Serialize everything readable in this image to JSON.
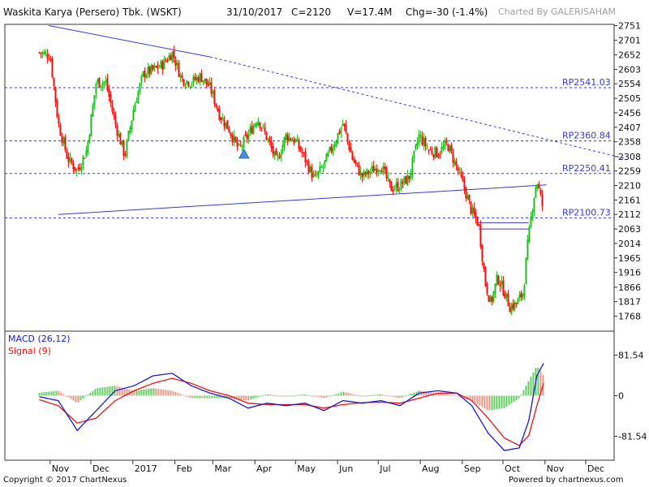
{
  "header": {
    "title": "Waskita Karya (Persero) Tbk. (WSKT)",
    "date": "31/10/2017",
    "close": "C=2120",
    "volume": "V=17.4M",
    "change": "Chg=-30 (-1.4%)",
    "watermark": "Charted By GALERISAHAM"
  },
  "footer": {
    "copyright": "Copyright © 2017 ChartNexus",
    "powered": "Powered by chartnexus.com"
  },
  "colors": {
    "up": "#22bb22",
    "down": "#ee1111",
    "trend": "#3a3ad0",
    "macd": "#1a1acc",
    "signal": "#ee1111"
  },
  "chart_data": [
    {
      "type": "candlestick",
      "title": "Waskita Karya (Persero) Tbk. (WSKT)",
      "ylim": [
        1730,
        2770
      ],
      "y_ticks": [
        "2751",
        "2701",
        "2652",
        "2603",
        "2554",
        "2505",
        "2456",
        "2407",
        "2358",
        "2308",
        "2259",
        "2210",
        "2161",
        "2112",
        "2063",
        "2014",
        "1965",
        "1916",
        "1866",
        "1817",
        "1768"
      ],
      "x_ticks": [
        "Nov",
        "Dec",
        "2017",
        "Feb",
        "Mar",
        "Apr",
        "May",
        "Jun",
        "Jul",
        "Aug",
        "Sep",
        "Oct",
        "Nov",
        "Dec"
      ],
      "levels": [
        {
          "label": "RP2541.03",
          "value": 2541.03
        },
        {
          "label": "RP2360.84",
          "value": 2360.84
        },
        {
          "label": "RP2250.41",
          "value": 2250.41
        },
        {
          "label": "RP2100.73",
          "value": 2100.73
        }
      ],
      "close_path": [
        [
          "2016-10-24",
          2660
        ],
        [
          "2016-11-01",
          2650
        ],
        [
          "2016-11-07",
          2420
        ],
        [
          "2016-11-14",
          2300
        ],
        [
          "2016-11-21",
          2260
        ],
        [
          "2016-11-28",
          2330
        ],
        [
          "2016-12-05",
          2560
        ],
        [
          "2016-12-12",
          2560
        ],
        [
          "2016-12-19",
          2420
        ],
        [
          "2016-12-26",
          2310
        ],
        [
          "2017-01-02",
          2480
        ],
        [
          "2017-01-09",
          2590
        ],
        [
          "2017-01-16",
          2600
        ],
        [
          "2017-01-23",
          2620
        ],
        [
          "2017-01-30",
          2660
        ],
        [
          "2017-02-06",
          2570
        ],
        [
          "2017-02-13",
          2560
        ],
        [
          "2017-02-20",
          2580
        ],
        [
          "2017-02-27",
          2540
        ],
        [
          "2017-03-06",
          2450
        ],
        [
          "2017-03-13",
          2400
        ],
        [
          "2017-03-20",
          2330
        ],
        [
          "2017-03-27",
          2380
        ],
        [
          "2017-04-03",
          2440
        ],
        [
          "2017-04-10",
          2370
        ],
        [
          "2017-04-17",
          2290
        ],
        [
          "2017-04-24",
          2380
        ],
        [
          "2017-05-01",
          2360
        ],
        [
          "2017-05-08",
          2300
        ],
        [
          "2017-05-15",
          2230
        ],
        [
          "2017-05-22",
          2280
        ],
        [
          "2017-05-29",
          2350
        ],
        [
          "2017-06-05",
          2420
        ],
        [
          "2017-06-12",
          2300
        ],
        [
          "2017-06-19",
          2240
        ],
        [
          "2017-06-26",
          2260
        ],
        [
          "2017-07-03",
          2280
        ],
        [
          "2017-07-10",
          2200
        ],
        [
          "2017-07-17",
          2210
        ],
        [
          "2017-07-24",
          2240
        ],
        [
          "2017-07-31",
          2380
        ],
        [
          "2017-08-07",
          2330
        ],
        [
          "2017-08-14",
          2320
        ],
        [
          "2017-08-21",
          2350
        ],
        [
          "2017-08-28",
          2270
        ],
        [
          "2017-09-04",
          2180
        ],
        [
          "2017-09-08",
          2120
        ],
        [
          "2017-09-13",
          2080
        ],
        [
          "2017-09-18",
          1880
        ],
        [
          "2017-09-22",
          1810
        ],
        [
          "2017-09-27",
          1900
        ],
        [
          "2017-10-02",
          1850
        ],
        [
          "2017-10-06",
          1800
        ],
        [
          "2017-10-11",
          1810
        ],
        [
          "2017-10-16",
          1850
        ],
        [
          "2017-10-19",
          2000
        ],
        [
          "2017-10-23",
          2150
        ],
        [
          "2017-10-26",
          2230
        ],
        [
          "2017-10-31",
          2120
        ]
      ],
      "trendlines": [
        {
          "from": [
            "2016-10-31",
            2751
          ],
          "to": [
            "2017-02-27",
            2645
          ],
          "style": "solid"
        },
        {
          "from": [
            "2017-02-27",
            2645
          ],
          "to": [
            "2017-12-31",
            2300
          ],
          "style": "dashed"
        },
        {
          "from": [
            "2016-11-07",
            2112
          ],
          "to": [
            "2017-11-02",
            2212
          ],
          "style": "solid"
        },
        {
          "from": [
            "2017-09-12",
            2084
          ],
          "to": [
            "2017-10-20",
            2084
          ],
          "style": "solid"
        },
        {
          "from": [
            "2017-09-13",
            2063
          ],
          "to": [
            "2017-10-20",
            2063
          ],
          "style": "solid"
        }
      ],
      "marker": {
        "date": "2017-03-24",
        "value": 2316,
        "shape": "triangle-up"
      }
    },
    {
      "type": "macd",
      "legend": [
        "MACD (26,12)",
        "Signal (9)"
      ],
      "ylim": [
        -120,
        120
      ],
      "y_ticks": [
        81.54,
        0,
        -81.54
      ],
      "y_tick_labels": [
        "81.54",
        "0",
        "-81.54"
      ],
      "macd_path": [
        [
          "2016-10-24",
          -2
        ],
        [
          "2016-11-07",
          -10
        ],
        [
          "2016-11-21",
          -70
        ],
        [
          "2016-12-05",
          -30
        ],
        [
          "2016-12-19",
          10
        ],
        [
          "2017-01-02",
          20
        ],
        [
          "2017-01-16",
          40
        ],
        [
          "2017-01-30",
          45
        ],
        [
          "2017-02-13",
          20
        ],
        [
          "2017-02-27",
          5
        ],
        [
          "2017-03-13",
          -5
        ],
        [
          "2017-03-27",
          -25
        ],
        [
          "2017-04-10",
          -15
        ],
        [
          "2017-04-24",
          -20
        ],
        [
          "2017-05-08",
          -15
        ],
        [
          "2017-05-22",
          -30
        ],
        [
          "2017-06-05",
          -10
        ],
        [
          "2017-06-19",
          -15
        ],
        [
          "2017-07-03",
          -10
        ],
        [
          "2017-07-17",
          -20
        ],
        [
          "2017-07-31",
          5
        ],
        [
          "2017-08-14",
          10
        ],
        [
          "2017-08-28",
          5
        ],
        [
          "2017-09-08",
          -20
        ],
        [
          "2017-09-20",
          -75
        ],
        [
          "2017-10-02",
          -110
        ],
        [
          "2017-10-13",
          -105
        ],
        [
          "2017-10-20",
          -50
        ],
        [
          "2017-10-26",
          40
        ],
        [
          "2017-10-31",
          65
        ]
      ],
      "signal_path": [
        [
          "2016-10-24",
          -8
        ],
        [
          "2016-11-07",
          -20
        ],
        [
          "2016-11-21",
          -55
        ],
        [
          "2016-12-05",
          -45
        ],
        [
          "2016-12-19",
          -10
        ],
        [
          "2017-01-02",
          10
        ],
        [
          "2017-01-16",
          25
        ],
        [
          "2017-01-30",
          35
        ],
        [
          "2017-02-13",
          25
        ],
        [
          "2017-02-27",
          10
        ],
        [
          "2017-03-13",
          0
        ],
        [
          "2017-03-27",
          -15
        ],
        [
          "2017-04-10",
          -18
        ],
        [
          "2017-04-24",
          -18
        ],
        [
          "2017-05-08",
          -18
        ],
        [
          "2017-05-22",
          -25
        ],
        [
          "2017-06-05",
          -18
        ],
        [
          "2017-06-19",
          -14
        ],
        [
          "2017-07-03",
          -13
        ],
        [
          "2017-07-17",
          -15
        ],
        [
          "2017-07-31",
          -5
        ],
        [
          "2017-08-14",
          5
        ],
        [
          "2017-08-28",
          5
        ],
        [
          "2017-09-08",
          -10
        ],
        [
          "2017-09-20",
          -45
        ],
        [
          "2017-10-02",
          -85
        ],
        [
          "2017-10-13",
          -100
        ],
        [
          "2017-10-20",
          -80
        ],
        [
          "2017-10-26",
          -20
        ],
        [
          "2017-10-31",
          25
        ]
      ]
    }
  ]
}
